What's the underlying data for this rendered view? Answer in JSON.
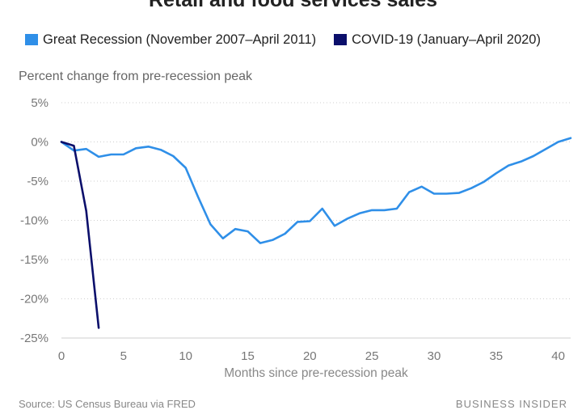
{
  "chart_data": {
    "type": "line",
    "title": "Retail and food services sales",
    "ylabel": "Percent change from pre-recession peak",
    "xlabel": "Months since pre-recession peak",
    "xlim": [
      0,
      41
    ],
    "ylim": [
      -25,
      5
    ],
    "x_ticks": [
      0,
      5,
      10,
      15,
      20,
      25,
      30,
      35,
      40
    ],
    "y_ticks": [
      5,
      0,
      -5,
      -10,
      -15,
      -20,
      -25
    ],
    "y_tick_labels": [
      "5%",
      "0%",
      "-5%",
      "-10%",
      "-15%",
      "-20%",
      "-25%"
    ],
    "grid": "horizontal dotted",
    "legend_position": "top",
    "series": [
      {
        "name": "Great Recession (November 2007–April 2011)",
        "color": "#2f8fe8",
        "x": [
          0,
          1,
          2,
          3,
          4,
          5,
          6,
          7,
          8,
          9,
          10,
          11,
          12,
          13,
          14,
          15,
          16,
          17,
          18,
          19,
          20,
          21,
          22,
          23,
          24,
          25,
          26,
          27,
          28,
          29,
          30,
          31,
          32,
          33,
          34,
          35,
          36,
          37,
          38,
          39,
          40,
          41
        ],
        "values": [
          0,
          -1.1,
          -0.9,
          -1.9,
          -1.6,
          -1.6,
          -0.8,
          -0.6,
          -1.0,
          -1.8,
          -3.3,
          -7.0,
          -10.5,
          -12.3,
          -11.1,
          -11.4,
          -12.9,
          -12.5,
          -11.7,
          -10.2,
          -10.1,
          -8.5,
          -10.7,
          -9.8,
          -9.1,
          -8.7,
          -8.7,
          -8.5,
          -6.4,
          -5.7,
          -6.6,
          -6.6,
          -6.5,
          -5.9,
          -5.1,
          -4.0,
          -3.0,
          -2.5,
          -1.8,
          -0.9,
          0,
          0.5
        ]
      },
      {
        "name": "COVID-19 (January–April 2020)",
        "color": "#0b0f6b",
        "x": [
          0,
          1,
          2,
          3
        ],
        "values": [
          0,
          -0.5,
          -8.8,
          -23.7
        ]
      }
    ]
  },
  "footer": {
    "source": "Source: US Census Bureau via FRED",
    "brand": "BUSINESS INSIDER"
  }
}
